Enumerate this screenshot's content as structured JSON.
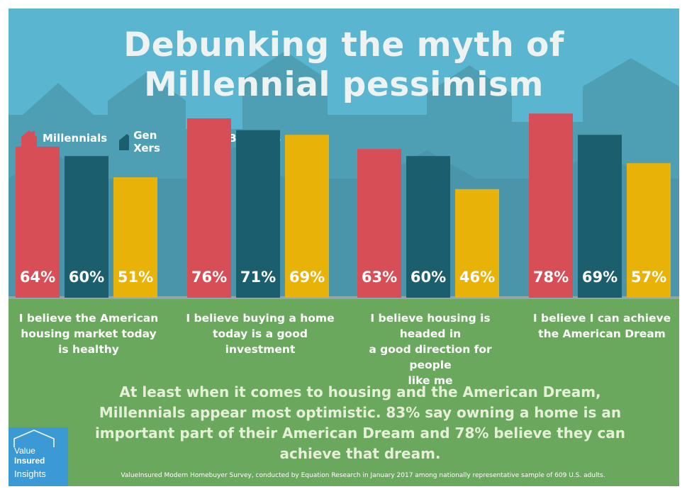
{
  "title": {
    "line1": "Debunking the myth of",
    "line2": "Millennial pessimism"
  },
  "colors": {
    "Millennials": "#d84e57",
    "Gen Xers": "#1b5e6e",
    "Boomers": "#e9b209"
  },
  "chart_data": {
    "type": "bar",
    "categories": [
      "I believe the American housing market today is healthy",
      "I believe buying a home today is a good investment",
      "I believe housing is headed in a good direction for people like me",
      "I believe I can achieve the American Dream"
    ],
    "category_lines": [
      [
        "I believe the American",
        "housing market today",
        "is healthy"
      ],
      [
        "I believe buying a home",
        "today is a good",
        "investment"
      ],
      [
        "I believe housing is headed in",
        "a good direction for people",
        "like me"
      ],
      [
        "I believe I can achieve",
        "the American Dream"
      ]
    ],
    "series": [
      {
        "name": "Millennials",
        "values": [
          64,
          76,
          63,
          78
        ]
      },
      {
        "name": "Gen Xers",
        "values": [
          60,
          71,
          60,
          69
        ]
      },
      {
        "name": "Boomers",
        "values": [
          51,
          69,
          46,
          57
        ]
      }
    ],
    "value_suffix": "%",
    "legend": "top-left",
    "grid": false
  },
  "summary": "At least when it comes to housing and the American Dream, Millennials appear most optimistic. 83% say owning a home is an important part of their American Dream and 78% believe they can achieve that dream.",
  "footnote": "ValueInsured Modern Homebuyer Survey, conducted by Equation Research in January 2017 among nationally representative sample of 609 U.S. adults.",
  "logo": {
    "line1": "Value",
    "line2": "Insured",
    "line3": "Insights"
  }
}
